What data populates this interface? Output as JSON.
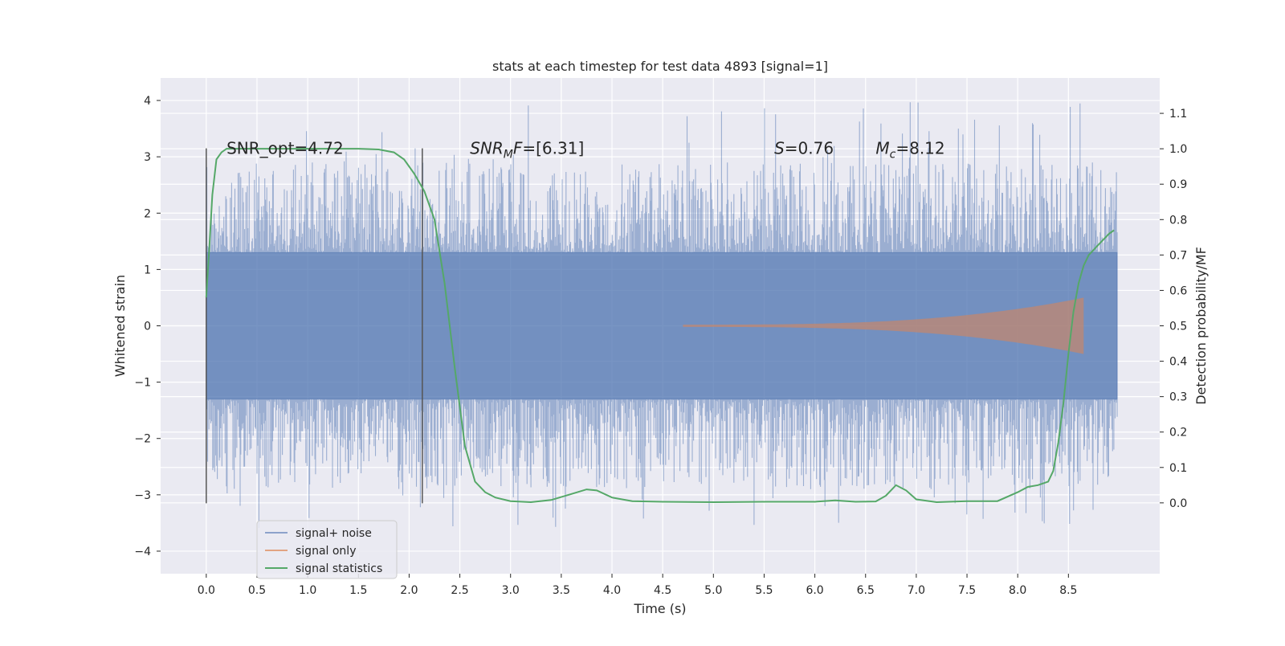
{
  "chart_data": {
    "type": "line",
    "title": "stats at each timestep for test data 4893 [signal=1]",
    "xlabel": "Time (s)",
    "ylabel_left": "Whitened strain",
    "ylabel_right": "Detection probability/MF",
    "xlim": [
      -0.45,
      9.4
    ],
    "ylim_left": [
      -4.4,
      4.4
    ],
    "ylim_right": [
      -0.2,
      1.2
    ],
    "x_ticks": [
      "0.0",
      "0.5",
      "1.0",
      "1.5",
      "2.0",
      "2.5",
      "3.0",
      "3.5",
      "4.0",
      "4.5",
      "5.0",
      "5.5",
      "6.0",
      "6.5",
      "7.0",
      "7.5",
      "8.0",
      "8.5"
    ],
    "y_left_ticks": [
      "4",
      "3",
      "2",
      "1",
      "0",
      "−1",
      "−2",
      "−3",
      "−4"
    ],
    "y_right_ticks": [
      "1.1",
      "1.0",
      "0.9",
      "0.8",
      "0.7",
      "0.6",
      "0.5",
      "0.4",
      "0.3",
      "0.2",
      "0.1",
      "0.0"
    ],
    "grid": true,
    "annotations": [
      {
        "name": "snr-opt-annotation",
        "text": "SNR_opt=4.72",
        "x": 0.2
      },
      {
        "name": "snr-mf-annotation",
        "text": "=[6.31]",
        "base": "SNR",
        "sub": "M",
        "tail": "F",
        "x": 2.6
      },
      {
        "name": "s-annotation",
        "text": "=0.76",
        "base": "S",
        "x": 5.6
      },
      {
        "name": "mc-annotation",
        "text": "=8.12",
        "base": "M",
        "sub": "c",
        "x": 6.6
      }
    ],
    "vlines": [
      0.0,
      2.13
    ],
    "legend": {
      "placement": "bottom-left",
      "entries": [
        "signal+ noise",
        "signal only",
        "signal statistics"
      ]
    },
    "series": [
      {
        "name": "signal+ noise",
        "color": "#4c72b0",
        "x_range": [
          0.0,
          8.98
        ],
        "noise_envelope": 1.3,
        "peak_range": [
          -3.6,
          4.0
        ]
      },
      {
        "name": "signal only",
        "color": "#dd8452",
        "chirp_start": 4.7,
        "chirp_end": 8.65,
        "max_amplitude": 0.5
      },
      {
        "name": "signal statistics",
        "color": "#55a868",
        "x": [
          0.0,
          0.03,
          0.06,
          0.1,
          0.15,
          0.2,
          0.3,
          0.5,
          1.0,
          1.5,
          1.7,
          1.85,
          1.95,
          2.05,
          2.15,
          2.25,
          2.35,
          2.45,
          2.55,
          2.65,
          2.75,
          2.85,
          3.0,
          3.2,
          3.4,
          3.6,
          3.75,
          3.85,
          4.0,
          4.2,
          4.5,
          5.0,
          5.5,
          6.0,
          6.2,
          6.4,
          6.6,
          6.7,
          6.8,
          6.9,
          7.0,
          7.2,
          7.5,
          7.8,
          8.0,
          8.1,
          8.2,
          8.3,
          8.35,
          8.4,
          8.45,
          8.5,
          8.55,
          8.6,
          8.65,
          8.7,
          8.8,
          8.9,
          8.95
        ],
        "y": [
          0.58,
          0.72,
          0.87,
          0.97,
          0.99,
          1.0,
          1.0,
          1.0,
          1.0,
          1.0,
          0.998,
          0.99,
          0.97,
          0.93,
          0.88,
          0.8,
          0.62,
          0.38,
          0.16,
          0.06,
          0.03,
          0.015,
          0.005,
          0.002,
          0.008,
          0.025,
          0.038,
          0.035,
          0.015,
          0.005,
          0.003,
          0.002,
          0.003,
          0.003,
          0.007,
          0.003,
          0.004,
          0.02,
          0.05,
          0.035,
          0.01,
          0.002,
          0.005,
          0.005,
          0.03,
          0.045,
          0.05,
          0.06,
          0.09,
          0.17,
          0.28,
          0.42,
          0.54,
          0.62,
          0.67,
          0.7,
          0.73,
          0.76,
          0.77
        ]
      }
    ]
  }
}
